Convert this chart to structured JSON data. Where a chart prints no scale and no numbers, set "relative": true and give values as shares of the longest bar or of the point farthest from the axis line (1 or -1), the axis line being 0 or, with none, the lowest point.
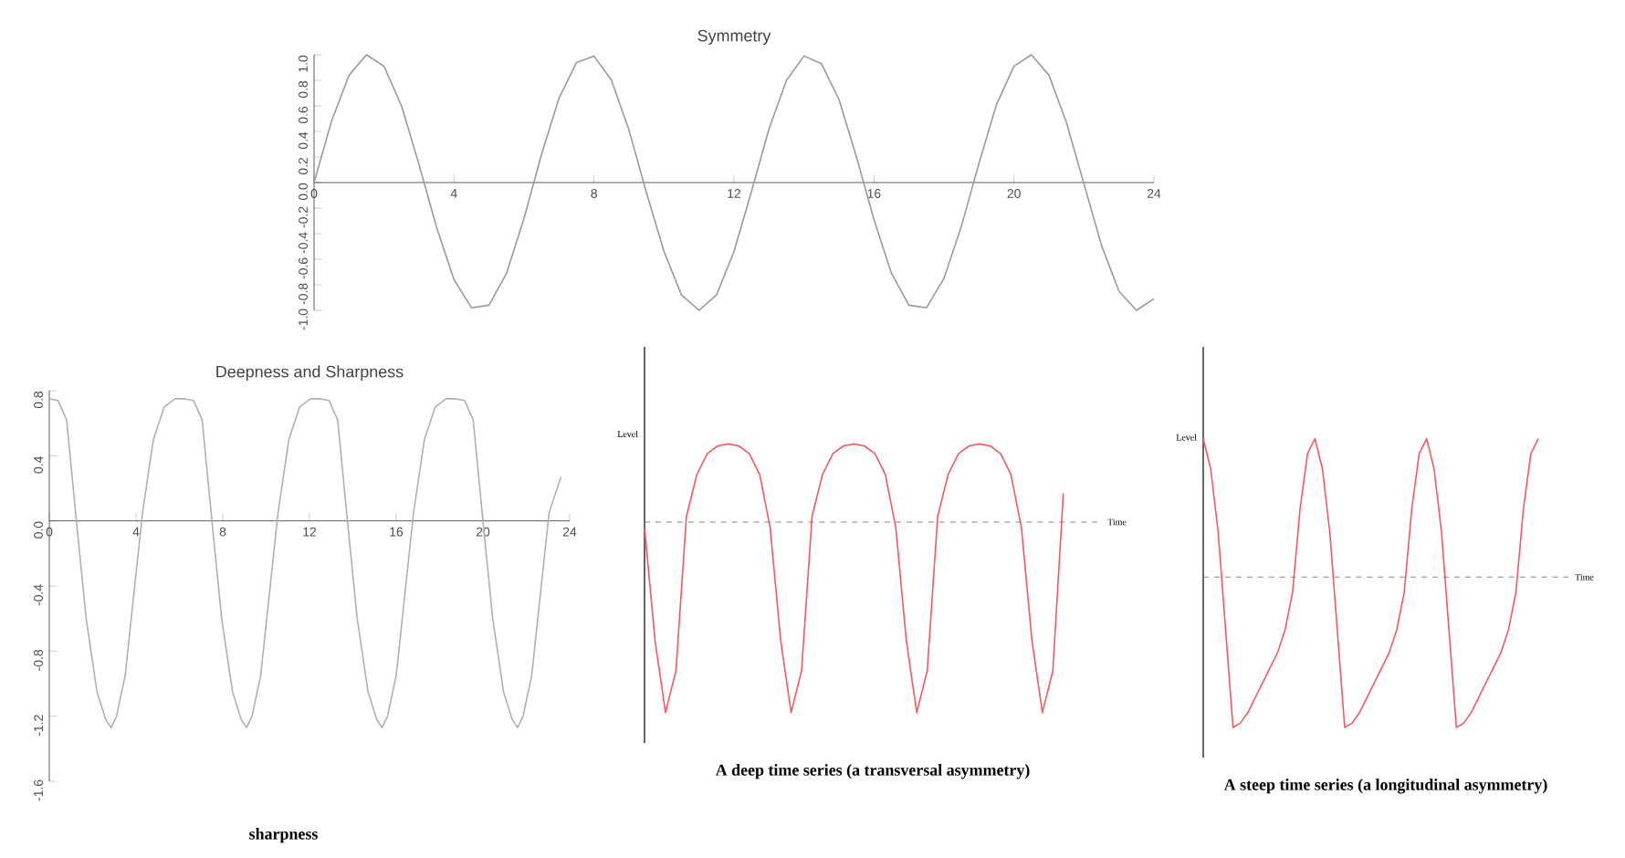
{
  "chart_data": [
    {
      "type": "line",
      "title": "Symmetry",
      "color": "#9a9a9a",
      "xlim": [
        0,
        24
      ],
      "xticks": [
        0,
        4,
        8,
        12,
        16,
        20,
        24
      ],
      "ylim": [
        -1,
        1
      ],
      "yticks": [
        {
          "value": -1,
          "label": "-1.0"
        },
        {
          "value": -0.8,
          "label": "-0.8"
        },
        {
          "value": -0.6,
          "label": "-0.6"
        },
        {
          "value": -0.4,
          "label": "-0.4"
        },
        {
          "value": -0.2,
          "label": "-0.2"
        },
        {
          "value": 0,
          "label": "0.0"
        },
        {
          "value": 0.2,
          "label": "0.2"
        },
        {
          "value": 0.4,
          "label": "0.4"
        },
        {
          "value": 0.6,
          "label": "0.6"
        },
        {
          "value": 0.8,
          "label": "0.8"
        },
        {
          "value": 1,
          "label": "1.0"
        }
      ],
      "x": [
        0,
        0.5,
        1,
        1.5,
        2,
        2.5,
        3,
        3.5,
        4,
        4.5,
        5,
        5.5,
        6,
        6.5,
        7,
        7.5,
        8,
        8.5,
        9,
        9.5,
        10,
        10.5,
        11,
        11.5,
        12,
        12.5,
        13,
        13.5,
        14,
        14.5,
        15,
        15.5,
        16,
        16.5,
        17,
        17.5,
        18,
        18.5,
        19,
        19.5,
        20,
        20.5,
        21,
        21.5,
        22,
        22.5,
        23,
        23.5,
        24
      ],
      "values": [
        0,
        0.48,
        0.84,
        1,
        0.91,
        0.6,
        0.14,
        -0.35,
        -0.76,
        -0.98,
        -0.96,
        -0.71,
        -0.28,
        0.22,
        0.66,
        0.94,
        0.99,
        0.8,
        0.41,
        -0.08,
        -0.54,
        -0.88,
        -1,
        -0.88,
        -0.54,
        -0.07,
        0.42,
        0.8,
        0.99,
        0.93,
        0.65,
        0.2,
        -0.29,
        -0.71,
        -0.96,
        -0.98,
        -0.75,
        -0.34,
        0.15,
        0.61,
        0.91,
        1,
        0.84,
        0.47,
        -0.01,
        -0.49,
        -0.85,
        -1,
        -0.91
      ]
    },
    {
      "type": "line",
      "title": "Deepness and Sharpness",
      "annotations": [
        "sharpness"
      ],
      "color": "#b0b0b0",
      "xlim": [
        0,
        24
      ],
      "xticks": [
        0,
        4,
        8,
        12,
        16,
        20,
        24
      ],
      "ylim": [
        -1.6,
        0.8
      ],
      "yticks": [
        {
          "value": -1.6,
          "label": "-1.6"
        },
        {
          "value": -1.2,
          "label": "-1.2"
        },
        {
          "value": -0.8,
          "label": "-0.8"
        },
        {
          "value": -0.4,
          "label": "-0.4"
        },
        {
          "value": 0,
          "label": "0.0"
        },
        {
          "value": 0.4,
          "label": "0.4"
        },
        {
          "value": 0.8,
          "label": "0.8"
        }
      ],
      "x": [
        0,
        0.4,
        0.8,
        1.25,
        1.7,
        2.2,
        2.6,
        2.85,
        3.1,
        3.5,
        3.9,
        4.3,
        4.8,
        5.3,
        5.8,
        6.25,
        6.65,
        7.05,
        7.5,
        7.95,
        8.45,
        8.85,
        9.1,
        9.35,
        9.75,
        10.15,
        10.55,
        11.05,
        11.55,
        12.05,
        12.5,
        12.9,
        13.3,
        13.75,
        14.2,
        14.7,
        15.1,
        15.35,
        15.6,
        16.0,
        16.4,
        16.8,
        17.3,
        17.8,
        18.3,
        18.75,
        19.15,
        19.55,
        20.0,
        20.45,
        20.95,
        21.35,
        21.6,
        21.85,
        22.25,
        22.65,
        23.05,
        23.6
      ],
      "values": [
        0.75,
        0.74,
        0.62,
        0.0,
        -0.6,
        -1.05,
        -1.22,
        -1.27,
        -1.2,
        -0.95,
        -0.45,
        0.05,
        0.5,
        0.7,
        0.75,
        0.75,
        0.74,
        0.62,
        0.0,
        -0.6,
        -1.05,
        -1.22,
        -1.27,
        -1.2,
        -0.95,
        -0.45,
        0.05,
        0.5,
        0.7,
        0.75,
        0.75,
        0.74,
        0.62,
        0.0,
        -0.6,
        -1.05,
        -1.22,
        -1.27,
        -1.2,
        -0.95,
        -0.45,
        0.05,
        0.5,
        0.7,
        0.75,
        0.75,
        0.74,
        0.62,
        0.0,
        -0.6,
        -1.05,
        -1.22,
        -1.27,
        -1.2,
        -0.95,
        -0.45,
        0.05,
        0.27
      ]
    },
    {
      "type": "line",
      "relative": true,
      "title": "A deep time series (a transversal asymmetry)",
      "xlabel": "Time",
      "ylabel": "Level",
      "color": "#f05a64",
      "ref_lines": [
        {
          "axis": "y",
          "value": 0,
          "line_style": "dashed",
          "color": "#666666"
        }
      ],
      "categories": [
        null,
        null,
        null,
        null,
        null,
        null,
        null,
        null,
        null,
        null,
        null,
        null,
        null,
        null,
        null,
        null,
        null,
        null,
        null,
        null,
        null,
        null,
        null,
        null,
        null,
        null,
        null,
        null,
        null,
        null,
        null,
        null,
        null,
        null,
        null,
        null,
        null,
        null,
        null,
        null,
        null
      ],
      "values": [
        -0.03,
        -0.62,
        -1,
        -0.78,
        0.03,
        0.25,
        0.36,
        0.4,
        0.41,
        0.4,
        0.36,
        0.25,
        -0.03,
        -0.62,
        -1,
        -0.78,
        0.03,
        0.25,
        0.36,
        0.4,
        0.41,
        0.4,
        0.36,
        0.25,
        -0.03,
        -0.62,
        -1,
        -0.78,
        0.03,
        0.25,
        0.36,
        0.4,
        0.41,
        0.4,
        0.36,
        0.25,
        -0.03,
        -0.62,
        -1,
        -0.78,
        0.15
      ]
    },
    {
      "type": "line",
      "relative": true,
      "title": "A steep time series (a longitudinal asymmetry)",
      "xlabel": "Time",
      "ylabel": "Level",
      "color": "#f05a64",
      "ref_lines": [
        {
          "axis": "y",
          "value": 0,
          "line_style": "dashed",
          "color": "#666666"
        }
      ],
      "categories": [
        null,
        null,
        null,
        null,
        null,
        null,
        null,
        null,
        null,
        null,
        null,
        null,
        null,
        null,
        null,
        null,
        null,
        null,
        null,
        null,
        null,
        null,
        null,
        null,
        null,
        null,
        null,
        null,
        null,
        null,
        null,
        null,
        null,
        null,
        null,
        null,
        null,
        null,
        null,
        null,
        null,
        null,
        null,
        null,
        null,
        null
      ],
      "values": [
        0.92,
        0.72,
        0.3,
        -0.35,
        -1.0,
        -0.97,
        -0.9,
        -0.8,
        -0.7,
        -0.6,
        -0.5,
        -0.35,
        -0.1,
        0.45,
        0.82,
        0.92,
        0.72,
        0.3,
        -0.35,
        -1.0,
        -0.97,
        -0.9,
        -0.8,
        -0.7,
        -0.6,
        -0.5,
        -0.35,
        -0.1,
        0.45,
        0.82,
        0.92,
        0.72,
        0.3,
        -0.35,
        -1.0,
        -0.97,
        -0.9,
        -0.8,
        -0.7,
        -0.6,
        -0.5,
        -0.35,
        -0.1,
        0.45,
        0.82,
        0.92
      ]
    }
  ]
}
